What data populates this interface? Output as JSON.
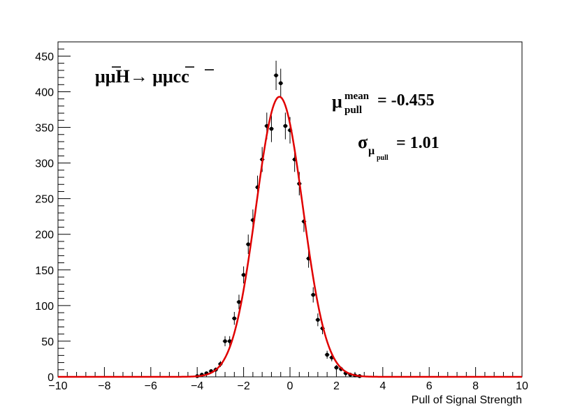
{
  "chart_data": {
    "type": "scatter",
    "xlabel": "Pull of Signal Strength",
    "ylabel": "",
    "xlim": [
      -10,
      10
    ],
    "ylim": [
      0,
      470
    ],
    "x_ticks": [
      -10,
      -8,
      -6,
      -4,
      -2,
      0,
      2,
      4,
      6,
      8,
      10
    ],
    "y_ticks": [
      0,
      50,
      100,
      150,
      200,
      250,
      300,
      350,
      400,
      450
    ],
    "x_tick_labels": [
      "−10",
      "−8",
      "−6",
      "−4",
      "−2",
      "0",
      "2",
      "4",
      "6",
      "8",
      "10"
    ],
    "y_tick_labels": [
      "0",
      "50",
      "100",
      "150",
      "200",
      "250",
      "300",
      "350",
      "400",
      "450"
    ],
    "grid": false,
    "process_label": "μμH→  μμcc",
    "mean_label": "μ",
    "mean_sup": "mean",
    "mean_sub": "pull",
    "mean_value": "= -0.455",
    "sigma_label": "σ",
    "sigma_sub": "μ",
    "sigma_subsub": "pull",
    "sigma_value": "= 1.01",
    "series": [
      {
        "kind": "histogram-points",
        "color": "#000000",
        "x": [
          -4.0,
          -3.8,
          -3.6,
          -3.4,
          -3.2,
          -3.0,
          -2.8,
          -2.6,
          -2.4,
          -2.2,
          -2.0,
          -1.8,
          -1.6,
          -1.4,
          -1.2,
          -1.0,
          -0.8,
          -0.6,
          -0.4,
          -0.2,
          0.0,
          0.2,
          0.4,
          0.6,
          0.8,
          1.0,
          1.2,
          1.4,
          1.6,
          1.8,
          2.0,
          2.2,
          2.4,
          2.6,
          2.8,
          3.0
        ],
        "y": [
          1,
          3,
          5,
          8,
          10,
          18,
          50,
          50,
          82,
          105,
          143,
          186,
          220,
          266,
          305,
          352,
          348,
          423,
          412,
          352,
          346,
          305,
          271,
          218,
          166,
          115,
          80,
          68,
          31,
          27,
          13,
          11,
          5,
          3,
          2,
          1
        ]
      },
      {
        "kind": "fit",
        "color": "#e00000",
        "mean": -0.455,
        "sigma": 1.01,
        "amplitude": 393
      }
    ]
  }
}
